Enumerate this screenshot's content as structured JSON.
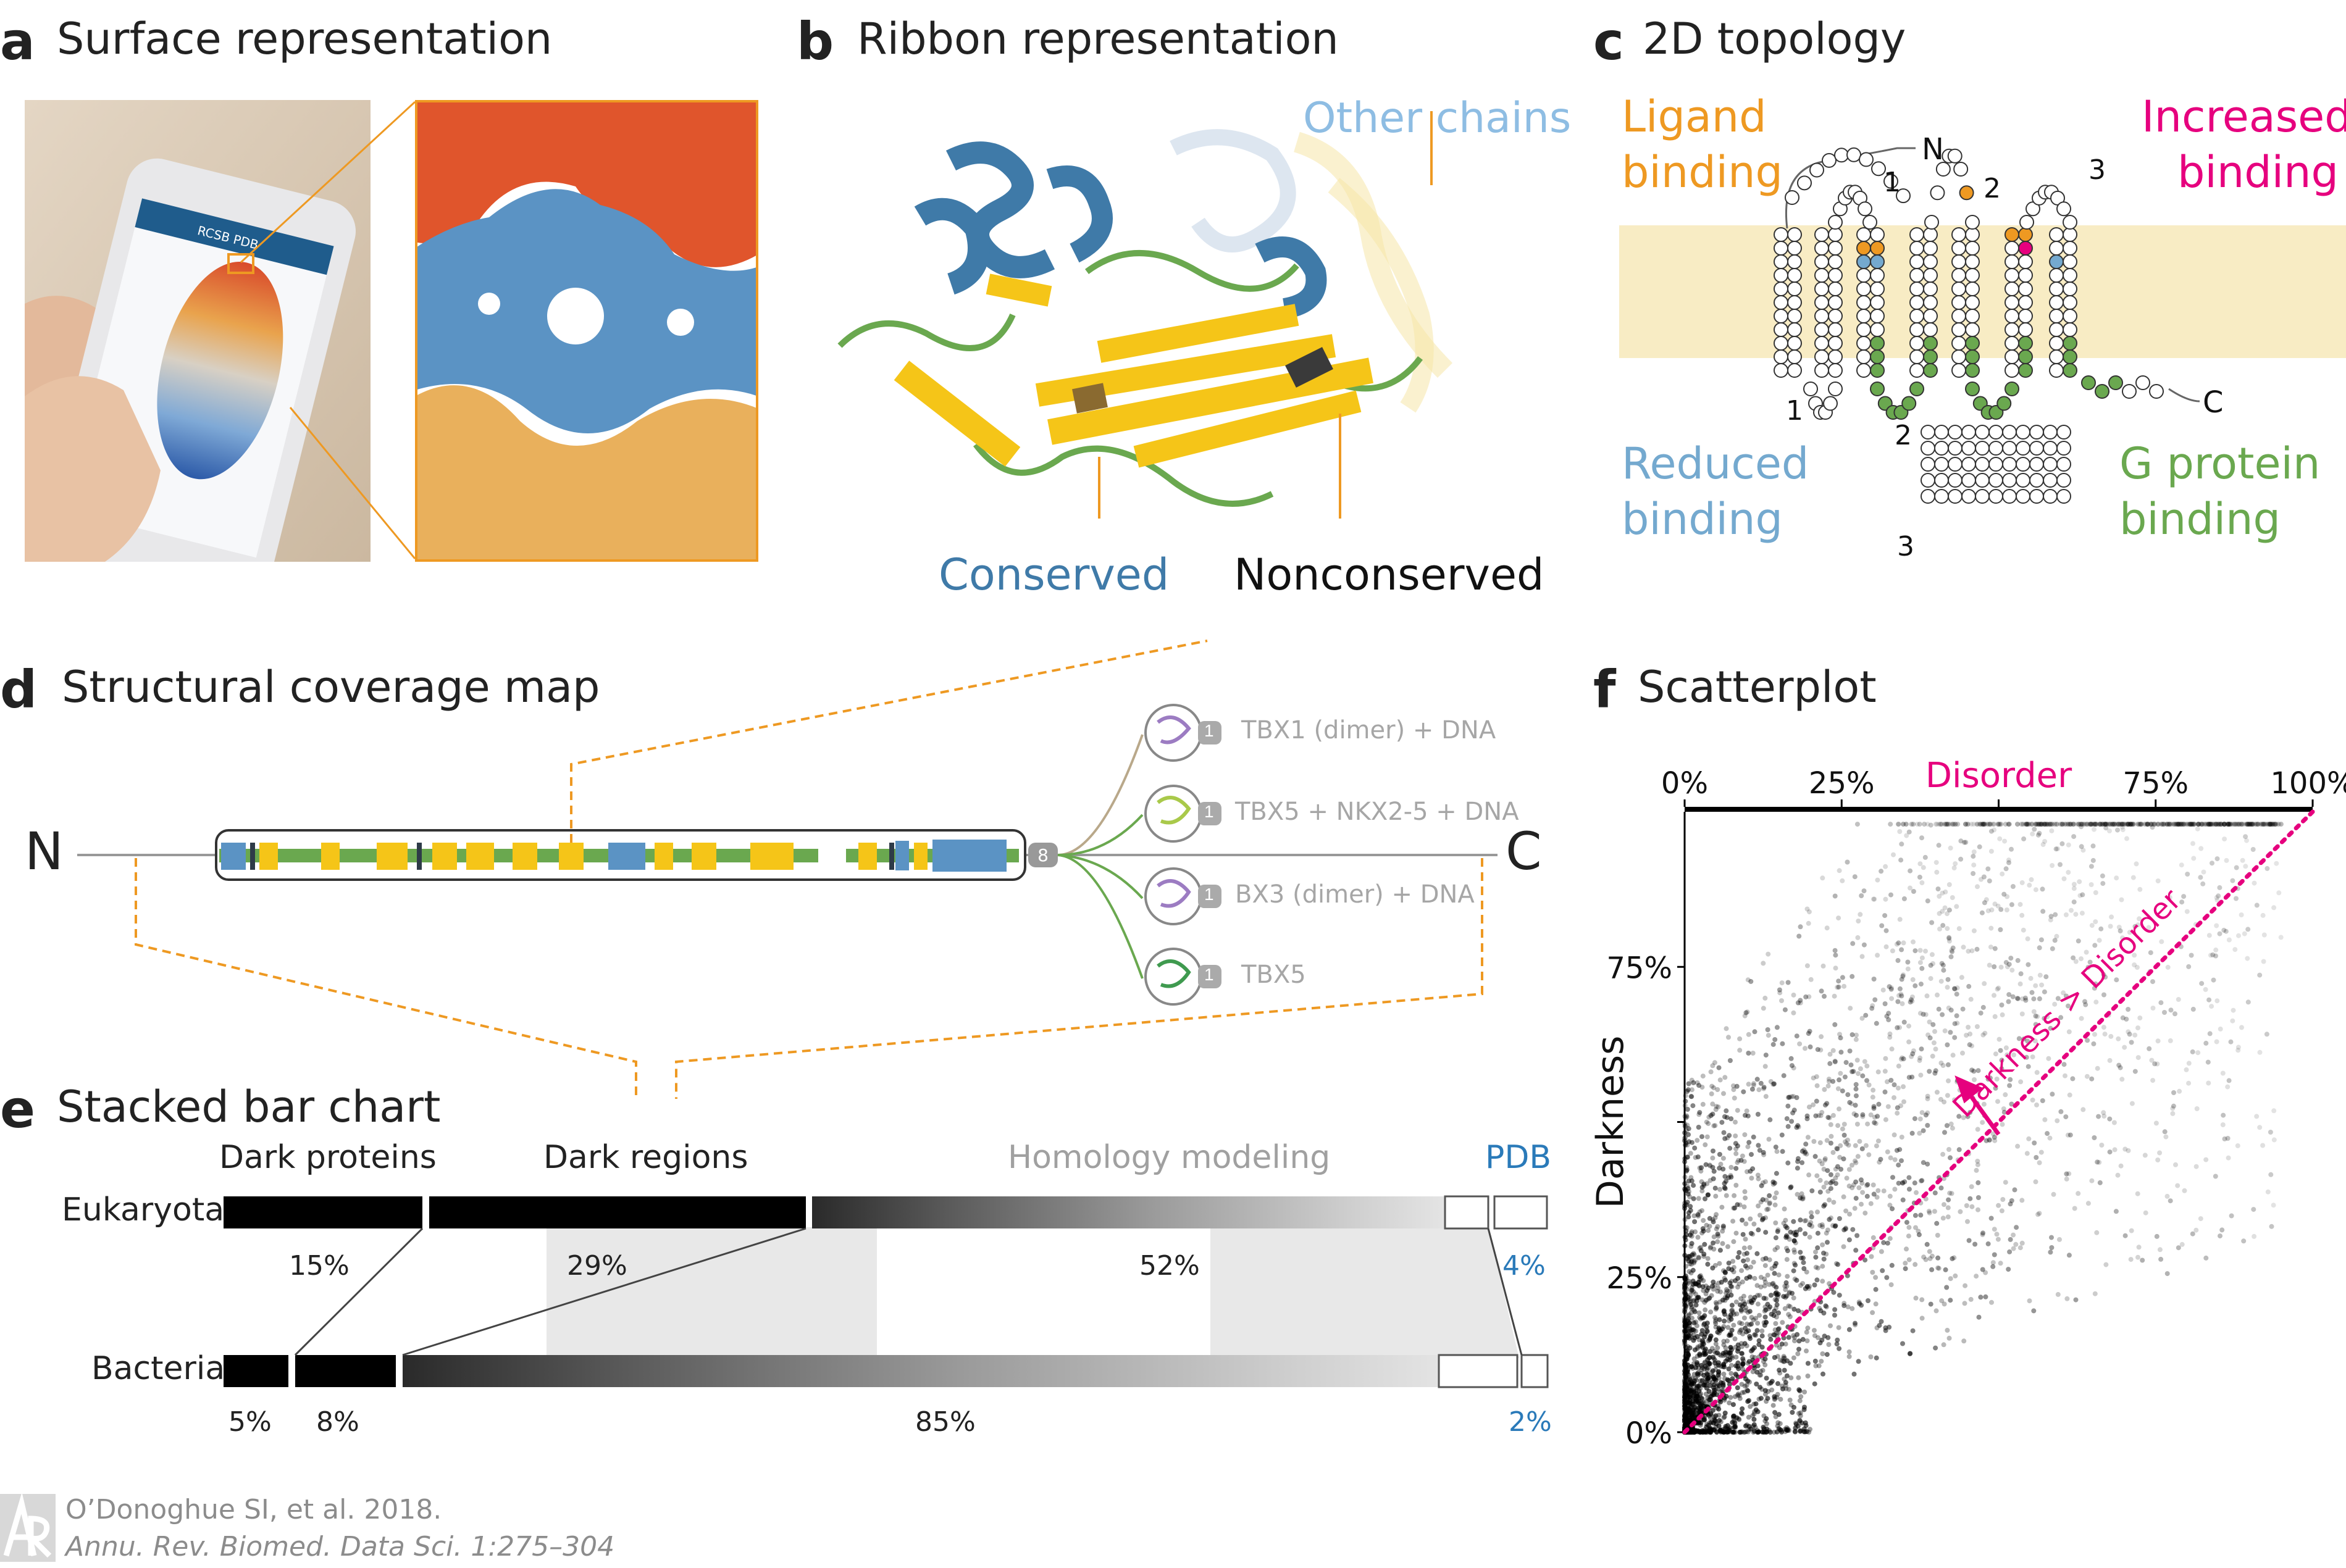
{
  "panels": {
    "a": {
      "letter": "a",
      "title": "Surface representation",
      "phone_site": "RCSB PDB"
    },
    "b": {
      "letter": "b",
      "title": "Ribbon representation",
      "labels": {
        "other_chains": "Other chains",
        "conserved": "Conserved",
        "nonconserved": "Nonconserved"
      }
    },
    "c": {
      "letter": "c",
      "title": "2D topology",
      "labels": {
        "ligand": [
          "Ligand",
          "binding"
        ],
        "increased": [
          "Increased",
          "binding"
        ],
        "reduced": [
          "Reduced",
          "binding"
        ],
        "gprotein": [
          "G protein",
          "binding"
        ]
      },
      "termini": {
        "n": "N",
        "c": "C"
      },
      "loop_numbers": {
        "top": [
          "1",
          "2",
          "3"
        ],
        "bottom": [
          "1",
          "2",
          "3"
        ]
      }
    },
    "d": {
      "letter": "d",
      "title": "Structural coverage map",
      "termini": {
        "n": "N",
        "c": "C"
      },
      "count_badge": "8",
      "structures": [
        {
          "count": "1",
          "label": "TBX1 (dimer) + DNA"
        },
        {
          "count": "1",
          "label": "TBX5 + NKX2-5 + DNA"
        },
        {
          "count": "1",
          "label": "BX3 (dimer) + DNA"
        },
        {
          "count": "1",
          "label": "TBX5"
        }
      ]
    },
    "e": {
      "letter": "e",
      "title": "Stacked bar chart",
      "column_headers": {
        "dark_proteins": "Dark proteins",
        "dark_regions": "Dark regions",
        "homology": "Homology modeling",
        "pdb": "PDB"
      },
      "rows": [
        {
          "name": "Eukaryota",
          "dark_proteins": "15%",
          "dark_regions": "29%",
          "homology": "52%",
          "pdb": "4%"
        },
        {
          "name": "Bacteria",
          "dark_proteins": "5%",
          "dark_regions": "8%",
          "homology": "85%",
          "pdb": "2%"
        }
      ]
    },
    "f": {
      "letter": "f",
      "title": "Scatterplot"
    }
  },
  "colors": {
    "orange": "#ee9922",
    "magenta": "#e6007e",
    "light_blue": "#74a9cf",
    "green": "#6aa84f",
    "steel_blue": "#3f7aa8",
    "yellow": "#f5c518",
    "membrane": "#f8ecc4",
    "pdb_blue": "#2a7ab9"
  },
  "chart_data": {
    "type": "scatter",
    "title": "Scatterplot",
    "xlabel": "Disorder",
    "ylabel": "Darkness",
    "x_ticks": [
      "0%",
      "25%",
      "75%",
      "100%"
    ],
    "y_ticks": [
      "0%",
      "25%",
      "75%"
    ],
    "xlim": [
      0,
      100
    ],
    "ylim": [
      0,
      100
    ],
    "annotation": "Darkness > Disorder",
    "reference_line": {
      "from": [
        0,
        0
      ],
      "to": [
        100,
        100
      ],
      "style": "dotted",
      "color": "#e6007e"
    },
    "density_note": "thousands of grey points; densest near origin"
  },
  "citation": {
    "line1": "O’Donoghue SI, et al. 2018.",
    "line2": "Annu. Rev. Biomed. Data Sci. 1:275–304"
  }
}
